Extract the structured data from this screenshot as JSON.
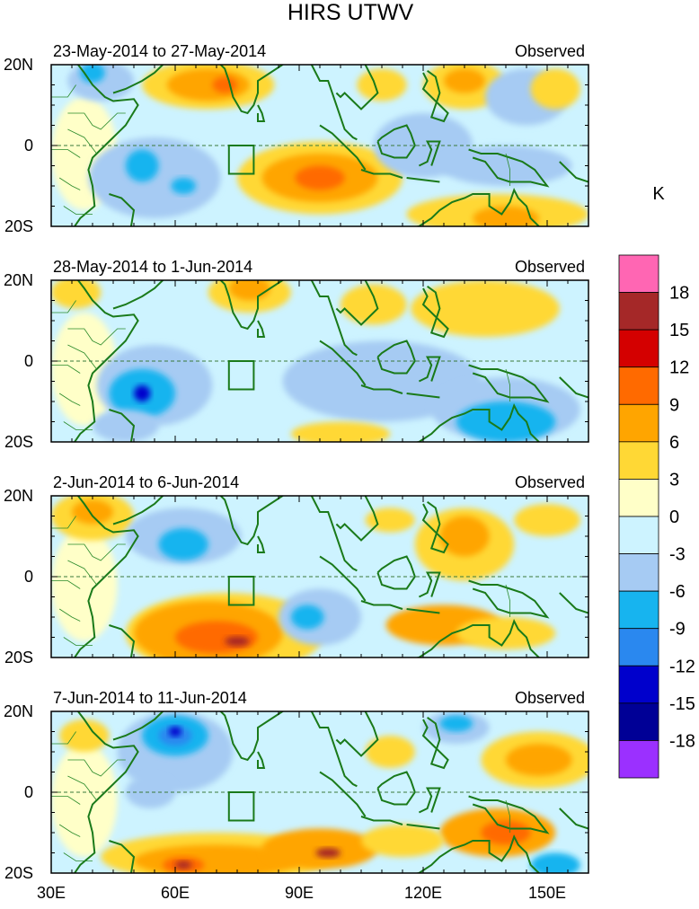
{
  "figure": {
    "title": "HIRS UTWV",
    "units_label": "K",
    "x_tick_labels": [
      "30E",
      "60E",
      "90E",
      "120E",
      "150E"
    ],
    "x_tick_values": [
      30,
      60,
      90,
      120,
      150
    ],
    "lon_range": [
      30,
      160
    ],
    "lat_range": [
      -20,
      20
    ]
  },
  "colorbar": {
    "levels": [
      "18",
      "15",
      "12",
      "9",
      "6",
      "3",
      "0",
      "-3",
      "-6",
      "-9",
      "-12",
      "-15",
      "-18"
    ],
    "colors": [
      "#ff66b3",
      "#a52828",
      "#d40000",
      "#ff6a00",
      "#ffa500",
      "#ffd835",
      "#ffffc8",
      "#cdf3ff",
      "#a6cbf3",
      "#17b4ef",
      "#2a88ef",
      "#0000cc",
      "#000096",
      "#9b30ff"
    ]
  },
  "panels": [
    {
      "date_range": "23-May-2014 to 27-May-2014",
      "label": "Observed",
      "y_tick_labels": [
        "20N",
        "0",
        "20S"
      ],
      "blobs": [
        {
          "lon": 42,
          "lat": 16,
          "rx": 8,
          "ry": 5,
          "color": "#a6cbf3"
        },
        {
          "lon": 40,
          "lat": 18,
          "rx": 3,
          "ry": 2.5,
          "color": "#17b4ef"
        },
        {
          "lon": 68,
          "lat": 15,
          "rx": 16,
          "ry": 6,
          "color": "#ffd835"
        },
        {
          "lon": 68,
          "lat": 15,
          "rx": 10,
          "ry": 4,
          "color": "#ffa500"
        },
        {
          "lon": 72,
          "lat": 15,
          "rx": 3,
          "ry": 2,
          "color": "#ff6a00"
        },
        {
          "lon": 55,
          "lat": -8,
          "rx": 16,
          "ry": 10,
          "color": "#a6cbf3"
        },
        {
          "lon": 52,
          "lat": -5,
          "rx": 4,
          "ry": 4,
          "color": "#17b4ef"
        },
        {
          "lon": 62,
          "lat": -10,
          "rx": 3,
          "ry": 2,
          "color": "#17b4ef"
        },
        {
          "lon": 95,
          "lat": -8,
          "rx": 20,
          "ry": 9,
          "color": "#ffd835"
        },
        {
          "lon": 95,
          "lat": -8,
          "rx": 14,
          "ry": 6,
          "color": "#ffa500"
        },
        {
          "lon": 95,
          "lat": -8,
          "rx": 6,
          "ry": 3,
          "color": "#ff6a00"
        },
        {
          "lon": 110,
          "lat": 15,
          "rx": 6,
          "ry": 4,
          "color": "#ffd835"
        },
        {
          "lon": 120,
          "lat": 0,
          "rx": 12,
          "ry": 8,
          "color": "#a6cbf3"
        },
        {
          "lon": 130,
          "lat": 15,
          "rx": 10,
          "ry": 6,
          "color": "#ffd835"
        },
        {
          "lon": 130,
          "lat": 16,
          "rx": 5,
          "ry": 3,
          "color": "#ffa500"
        },
        {
          "lon": 145,
          "lat": 12,
          "rx": 10,
          "ry": 7,
          "color": "#a6cbf3"
        },
        {
          "lon": 152,
          "lat": 14,
          "rx": 6,
          "ry": 5,
          "color": "#ffd835"
        },
        {
          "lon": 140,
          "lat": -5,
          "rx": 16,
          "ry": 5,
          "color": "#a6cbf3"
        },
        {
          "lon": 138,
          "lat": -17,
          "rx": 22,
          "ry": 5,
          "color": "#ffd835"
        },
        {
          "lon": 140,
          "lat": -18,
          "rx": 8,
          "ry": 3,
          "color": "#ffa500"
        }
      ]
    },
    {
      "date_range": "28-May-2014 to 1-Jun-2014",
      "label": "Observed",
      "y_tick_labels": [
        "20N",
        "0",
        "20S"
      ],
      "blobs": [
        {
          "lon": 36,
          "lat": 17,
          "rx": 6,
          "ry": 4,
          "color": "#ffd835"
        },
        {
          "lon": 78,
          "lat": 17,
          "rx": 10,
          "ry": 5,
          "color": "#ffd835"
        },
        {
          "lon": 78,
          "lat": 18,
          "rx": 5,
          "ry": 3,
          "color": "#ffa500"
        },
        {
          "lon": 55,
          "lat": -6,
          "rx": 14,
          "ry": 10,
          "color": "#a6cbf3"
        },
        {
          "lon": 52,
          "lat": -8,
          "rx": 8,
          "ry": 6,
          "color": "#17b4ef"
        },
        {
          "lon": 52,
          "lat": -8,
          "rx": 2,
          "ry": 2,
          "color": "#0000cc"
        },
        {
          "lon": 48,
          "lat": -16,
          "rx": 8,
          "ry": 4,
          "color": "#a6cbf3"
        },
        {
          "lon": 110,
          "lat": -5,
          "rx": 24,
          "ry": 10,
          "color": "#a6cbf3"
        },
        {
          "lon": 108,
          "lat": 14,
          "rx": 8,
          "ry": 5,
          "color": "#ffd835"
        },
        {
          "lon": 135,
          "lat": 13,
          "rx": 18,
          "ry": 7,
          "color": "#ffd835"
        },
        {
          "lon": 140,
          "lat": -12,
          "rx": 18,
          "ry": 8,
          "color": "#a6cbf3"
        },
        {
          "lon": 140,
          "lat": -15,
          "rx": 12,
          "ry": 5,
          "color": "#17b4ef"
        },
        {
          "lon": 100,
          "lat": -18,
          "rx": 12,
          "ry": 3,
          "color": "#ffd835"
        }
      ]
    },
    {
      "date_range": "2-Jun-2014 to 6-Jun-2014",
      "label": "Observed",
      "y_tick_labels": [
        "20N",
        "0",
        "20S"
      ],
      "blobs": [
        {
          "lon": 40,
          "lat": 15,
          "rx": 10,
          "ry": 6,
          "color": "#ffd835"
        },
        {
          "lon": 40,
          "lat": 16,
          "rx": 5,
          "ry": 3,
          "color": "#ffa500"
        },
        {
          "lon": 62,
          "lat": 10,
          "rx": 14,
          "ry": 7,
          "color": "#a6cbf3"
        },
        {
          "lon": 62,
          "lat": 8,
          "rx": 6,
          "ry": 4,
          "color": "#17b4ef"
        },
        {
          "lon": 72,
          "lat": -14,
          "rx": 24,
          "ry": 10,
          "color": "#ffd835"
        },
        {
          "lon": 68,
          "lat": -14,
          "rx": 18,
          "ry": 8,
          "color": "#ffa500"
        },
        {
          "lon": 70,
          "lat": -15,
          "rx": 10,
          "ry": 4,
          "color": "#ff6a00"
        },
        {
          "lon": 75,
          "lat": -16,
          "rx": 3,
          "ry": 1.2,
          "color": "#a52828"
        },
        {
          "lon": 95,
          "lat": -10,
          "rx": 10,
          "ry": 7,
          "color": "#a6cbf3"
        },
        {
          "lon": 92,
          "lat": -10,
          "rx": 4,
          "ry": 3,
          "color": "#17b4ef"
        },
        {
          "lon": 130,
          "lat": 8,
          "rx": 12,
          "ry": 9,
          "color": "#ffd835"
        },
        {
          "lon": 130,
          "lat": 10,
          "rx": 6,
          "ry": 5,
          "color": "#ffa500"
        },
        {
          "lon": 125,
          "lat": -12,
          "rx": 14,
          "ry": 5,
          "color": "#ffa500"
        },
        {
          "lon": 140,
          "lat": -14,
          "rx": 12,
          "ry": 4,
          "color": "#ffd835"
        },
        {
          "lon": 150,
          "lat": 14,
          "rx": 8,
          "ry": 4,
          "color": "#ffd835"
        },
        {
          "lon": 112,
          "lat": 14,
          "rx": 6,
          "ry": 3,
          "color": "#ffd835"
        }
      ]
    },
    {
      "date_range": "7-Jun-2014 to 11-Jun-2014",
      "label": "Observed",
      "y_tick_labels": [
        "20N",
        "0",
        "20S"
      ],
      "blobs": [
        {
          "lon": 60,
          "lat": 10,
          "rx": 14,
          "ry": 10,
          "color": "#a6cbf3"
        },
        {
          "lon": 60,
          "lat": 14,
          "rx": 8,
          "ry": 5,
          "color": "#17b4ef"
        },
        {
          "lon": 60,
          "lat": 14,
          "rx": 4,
          "ry": 2.5,
          "color": "#2a88ef"
        },
        {
          "lon": 60,
          "lat": 15,
          "rx": 1.5,
          "ry": 1.2,
          "color": "#0000cc"
        },
        {
          "lon": 54,
          "lat": 0,
          "rx": 6,
          "ry": 4,
          "color": "#a6cbf3"
        },
        {
          "lon": 38,
          "lat": 14,
          "rx": 6,
          "ry": 4,
          "color": "#ffd835"
        },
        {
          "lon": 70,
          "lat": -16,
          "rx": 28,
          "ry": 6,
          "color": "#ffd835"
        },
        {
          "lon": 70,
          "lat": -17,
          "rx": 20,
          "ry": 4,
          "color": "#ffa500"
        },
        {
          "lon": 62,
          "lat": -18,
          "rx": 5,
          "ry": 2,
          "color": "#ff6a00"
        },
        {
          "lon": 62,
          "lat": -18,
          "rx": 2,
          "ry": 1,
          "color": "#a52828"
        },
        {
          "lon": 95,
          "lat": -14,
          "rx": 14,
          "ry": 5,
          "color": "#ffa500"
        },
        {
          "lon": 97,
          "lat": -15,
          "rx": 3,
          "ry": 1.2,
          "color": "#a52828"
        },
        {
          "lon": 112,
          "lat": 10,
          "rx": 6,
          "ry": 4,
          "color": "#ffd835"
        },
        {
          "lon": 128,
          "lat": 16,
          "rx": 8,
          "ry": 4,
          "color": "#a6cbf3"
        },
        {
          "lon": 128,
          "lat": 17,
          "rx": 4,
          "ry": 2,
          "color": "#17b4ef"
        },
        {
          "lon": 148,
          "lat": 8,
          "rx": 14,
          "ry": 7,
          "color": "#ffd835"
        },
        {
          "lon": 148,
          "lat": 8,
          "rx": 8,
          "ry": 4,
          "color": "#ffa500"
        },
        {
          "lon": 138,
          "lat": -10,
          "rx": 14,
          "ry": 6,
          "color": "#ffa500"
        },
        {
          "lon": 140,
          "lat": -10,
          "rx": 6,
          "ry": 3,
          "color": "#ff6a00"
        },
        {
          "lon": 152,
          "lat": -18,
          "rx": 6,
          "ry": 3,
          "color": "#17b4ef"
        },
        {
          "lon": 115,
          "lat": -12,
          "rx": 10,
          "ry": 4,
          "color": "#ffd835"
        }
      ]
    }
  ]
}
